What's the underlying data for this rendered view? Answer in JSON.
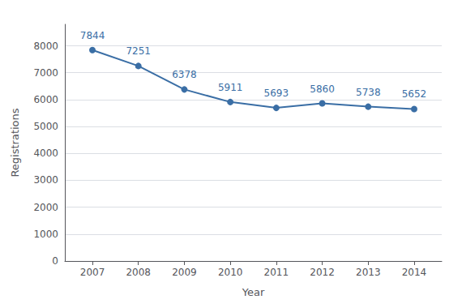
{
  "chart_data": {
    "type": "line",
    "x": [
      2007,
      2008,
      2009,
      2010,
      2011,
      2012,
      2013,
      2014
    ],
    "values": [
      7844,
      7251,
      6378,
      5911,
      5693,
      5860,
      5738,
      5652
    ],
    "xlabel": "Year",
    "ylabel": "Registrations",
    "xlim": [
      2006.4,
      2014.6
    ],
    "xticks": [
      2007,
      2008,
      2009,
      2010,
      2011,
      2012,
      2013,
      2014
    ],
    "ylim": [
      0,
      8800
    ],
    "yticks": [
      0,
      1000,
      2000,
      3000,
      4000,
      5000,
      6000,
      7000,
      8000
    ],
    "color": "#3A6EA5",
    "marker": "circle",
    "grid": true,
    "data_labels": true
  }
}
